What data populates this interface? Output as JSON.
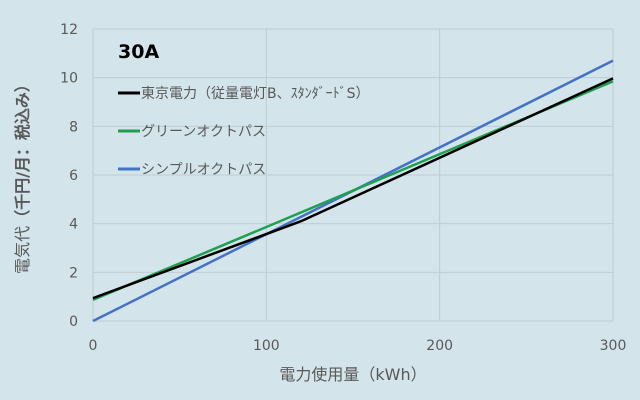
{
  "chart_data": {
    "type": "line",
    "title": "30A",
    "xlabel": "電力使用量（kWh）",
    "ylabel_prefix": "電気代",
    "ylabel_suffix": "（千円/月：税込み）",
    "xlim": [
      0,
      300
    ],
    "ylim": [
      0,
      12
    ],
    "xticks": [
      "0",
      "100",
      "200",
      "300"
    ],
    "yticks": [
      "0",
      "2",
      "4",
      "6",
      "8",
      "10",
      "12"
    ],
    "grid": true,
    "legend_position": "top-left",
    "series": [
      {
        "name": "東京電力（従量電灯B、ｽﾀﾝﾀﾞｰﾄﾞS）",
        "color": "#000000",
        "x": [
          0,
          120,
          300
        ],
        "y": [
          0.94,
          4.1,
          9.97
        ]
      },
      {
        "name": "グリーンオクトパス",
        "color": "#1fa050",
        "x": [
          0,
          300
        ],
        "y": [
          0.87,
          9.85
        ]
      },
      {
        "name": "シンプルオクトパス",
        "color": "#4472c4",
        "x": [
          0,
          300
        ],
        "y": [
          0.0,
          10.7
        ]
      }
    ]
  }
}
